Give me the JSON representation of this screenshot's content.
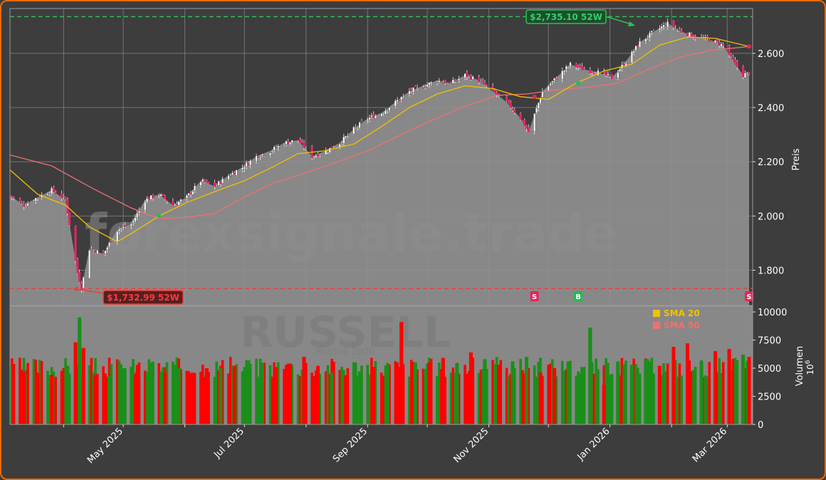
{
  "watermark": {
    "domain": "forexsignale.trade",
    "symbol": "RUSSELL",
    "subtitle": "Russell 2000"
  },
  "legend": {
    "sma20": "SMA 20",
    "sma50": "SMA 50"
  },
  "annotations": {
    "high": {
      "label": "$2,735.10 52W",
      "value": 2735.1
    },
    "low": {
      "label": "$1,732.99 52W",
      "value": 1732.99
    }
  },
  "price_axis": {
    "label": "Preis",
    "ticks": [
      "1.800",
      "2.000",
      "2.200",
      "2.400",
      "2.600"
    ]
  },
  "volume_axis": {
    "label": "Volumen",
    "unit_base": "10",
    "unit_exp": "6",
    "ticks": [
      "0",
      "2500",
      "5000",
      "7500",
      "10000"
    ]
  },
  "x_axis": {
    "ticks": [
      "May 2025",
      "Jul 2025",
      "Sep 2025",
      "Nov 2025",
      "Jan 2026",
      "Mar 2026"
    ]
  },
  "colors": {
    "background": "#3d3d3d",
    "plot_area": "#888888",
    "up": "#1a8f1a",
    "down": "#ff0000",
    "sma20": "#f2c200",
    "sma50": "#f07070",
    "high_line": "#2fbf5a",
    "low_line": "#e84040",
    "signal_buy": "#22bb55",
    "signal_sell": "#e8245a",
    "frame": "#f06a00"
  },
  "chart_data": [
    {
      "type": "candlestick",
      "title": "",
      "xlabel": "",
      "ylabel": "Preis",
      "x_range": [
        "2025-03-05",
        "2026-03-12"
      ],
      "ylim": [
        1670,
        2765
      ],
      "grid": true,
      "close_series": [
        [
          "2025-03-05",
          2075
        ],
        [
          "2025-03-12",
          2040
        ],
        [
          "2025-03-19",
          2070
        ],
        [
          "2025-03-26",
          2095
        ],
        [
          "2025-04-02",
          2060
        ],
        [
          "2025-04-04",
          1970
        ],
        [
          "2025-04-08",
          1790
        ],
        [
          "2025-04-10",
          1735
        ],
        [
          "2025-04-14",
          1880
        ],
        [
          "2025-04-21",
          1860
        ],
        [
          "2025-04-28",
          1950
        ],
        [
          "2025-05-05",
          1970
        ],
        [
          "2025-05-12",
          2060
        ],
        [
          "2025-05-19",
          2080
        ],
        [
          "2025-05-26",
          2040
        ],
        [
          "2025-06-02",
          2070
        ],
        [
          "2025-06-09",
          2130
        ],
        [
          "2025-06-16",
          2110
        ],
        [
          "2025-06-23",
          2150
        ],
        [
          "2025-06-30",
          2180
        ],
        [
          "2025-07-07",
          2220
        ],
        [
          "2025-07-14",
          2240
        ],
        [
          "2025-07-21",
          2270
        ],
        [
          "2025-07-28",
          2280
        ],
        [
          "2025-08-04",
          2220
        ],
        [
          "2025-08-11",
          2240
        ],
        [
          "2025-08-18",
          2270
        ],
        [
          "2025-08-25",
          2320
        ],
        [
          "2025-09-01",
          2360
        ],
        [
          "2025-09-08",
          2380
        ],
        [
          "2025-09-15",
          2420
        ],
        [
          "2025-09-22",
          2460
        ],
        [
          "2025-09-29",
          2480
        ],
        [
          "2025-10-06",
          2500
        ],
        [
          "2025-10-13",
          2490
        ],
        [
          "2025-10-20",
          2520
        ],
        [
          "2025-10-27",
          2500
        ],
        [
          "2025-11-03",
          2460
        ],
        [
          "2025-11-10",
          2420
        ],
        [
          "2025-11-17",
          2360
        ],
        [
          "2025-11-21",
          2310
        ],
        [
          "2025-11-28",
          2460
        ],
        [
          "2025-12-05",
          2510
        ],
        [
          "2025-12-12",
          2560
        ],
        [
          "2025-12-19",
          2540
        ],
        [
          "2025-12-26",
          2530
        ],
        [
          "2026-01-02",
          2510
        ],
        [
          "2026-01-09",
          2570
        ],
        [
          "2026-01-16",
          2640
        ],
        [
          "2026-01-23",
          2680
        ],
        [
          "2026-01-30",
          2710
        ],
        [
          "2026-02-06",
          2680
        ],
        [
          "2026-02-13",
          2660
        ],
        [
          "2026-02-20",
          2650
        ],
        [
          "2026-02-27",
          2630
        ],
        [
          "2026-03-04",
          2570
        ],
        [
          "2026-03-09",
          2520
        ],
        [
          "2026-03-12",
          2530
        ]
      ],
      "series": [
        {
          "name": "SMA 20",
          "values": [
            [
              "2025-03-05",
              2170
            ],
            [
              "2025-03-19",
              2080
            ],
            [
              "2025-04-02",
              2040
            ],
            [
              "2025-04-14",
              1960
            ],
            [
              "2025-04-28",
              1905
            ],
            [
              "2025-05-05",
              1935
            ],
            [
              "2025-05-19",
              2000
            ],
            [
              "2025-06-02",
              2050
            ],
            [
              "2025-06-16",
              2090
            ],
            [
              "2025-07-01",
              2130
            ],
            [
              "2025-07-15",
              2180
            ],
            [
              "2025-07-28",
              2230
            ],
            [
              "2025-08-10",
              2240
            ],
            [
              "2025-08-25",
              2265
            ],
            [
              "2025-09-08",
              2330
            ],
            [
              "2025-09-22",
              2400
            ],
            [
              "2025-10-06",
              2450
            ],
            [
              "2025-10-20",
              2480
            ],
            [
              "2025-11-03",
              2470
            ],
            [
              "2025-11-17",
              2440
            ],
            [
              "2025-12-01",
              2430
            ],
            [
              "2025-12-15",
              2490
            ],
            [
              "2025-12-29",
              2535
            ],
            [
              "2026-01-12",
              2560
            ],
            [
              "2026-01-26",
              2630
            ],
            [
              "2026-02-09",
              2660
            ],
            [
              "2026-02-23",
              2655
            ],
            [
              "2026-03-12",
              2625
            ]
          ]
        },
        {
          "name": "SMA 50",
          "values": [
            [
              "2025-03-05",
              2225
            ],
            [
              "2025-03-26",
              2185
            ],
            [
              "2025-04-16",
              2100
            ],
            [
              "2025-05-05",
              2030
            ],
            [
              "2025-05-19",
              1990
            ],
            [
              "2025-06-02",
              1995
            ],
            [
              "2025-06-16",
              2010
            ],
            [
              "2025-07-01",
              2070
            ],
            [
              "2025-07-15",
              2120
            ],
            [
              "2025-08-01",
              2160
            ],
            [
              "2025-08-15",
              2195
            ],
            [
              "2025-09-01",
              2240
            ],
            [
              "2025-09-15",
              2290
            ],
            [
              "2025-10-01",
              2345
            ],
            [
              "2025-10-20",
              2405
            ],
            [
              "2025-11-05",
              2445
            ],
            [
              "2025-11-20",
              2450
            ],
            [
              "2025-12-05",
              2465
            ],
            [
              "2025-12-20",
              2475
            ],
            [
              "2026-01-05",
              2490
            ],
            [
              "2026-01-20",
              2540
            ],
            [
              "2026-02-05",
              2585
            ],
            [
              "2026-02-20",
              2610
            ],
            [
              "2026-03-12",
              2625
            ]
          ]
        }
      ],
      "signals": [
        {
          "date": "2025-05-19",
          "type": "B"
        },
        {
          "date": "2025-11-24",
          "type": "S"
        },
        {
          "date": "2025-12-16",
          "type": "B"
        },
        {
          "date": "2026-03-12",
          "type": "S"
        }
      ],
      "hlines": [
        {
          "label": "$2,735.10 52W",
          "y": 2735.1
        },
        {
          "label": "$1,732.99 52W",
          "y": 1732.99
        }
      ]
    },
    {
      "type": "bar",
      "title": "",
      "ylabel": "Volumen",
      "ylim": [
        0,
        10000
      ],
      "x_range": [
        "2025-03-05",
        "2026-03-12"
      ],
      "values": [
        [
          "2025-03-05",
          5200,
          "up"
        ],
        [
          "2025-03-12",
          4700,
          "down"
        ],
        [
          "2025-03-19",
          4500,
          "down"
        ],
        [
          "2025-03-26",
          4400,
          "down"
        ],
        [
          "2025-04-03",
          5200,
          "up"
        ],
        [
          "2025-04-07",
          7300,
          "down"
        ],
        [
          "2025-04-09",
          9500,
          "up"
        ],
        [
          "2025-04-11",
          6800,
          "down"
        ],
        [
          "2025-04-17",
          4400,
          "down"
        ],
        [
          "2025-04-24",
          4300,
          "up"
        ],
        [
          "2025-05-01",
          5000,
          "up"
        ],
        [
          "2025-05-08",
          4700,
          "down"
        ],
        [
          "2025-05-15",
          5500,
          "up"
        ],
        [
          "2025-05-22",
          4600,
          "down"
        ],
        [
          "2025-05-29",
          5000,
          "up"
        ],
        [
          "2025-06-05",
          4600,
          "down"
        ],
        [
          "2025-06-12",
          5000,
          "down"
        ],
        [
          "2025-06-19",
          5000,
          "up"
        ],
        [
          "2025-06-26",
          5200,
          "down"
        ],
        [
          "2025-07-03",
          5700,
          "up"
        ],
        [
          "2025-07-10",
          5500,
          "up"
        ],
        [
          "2025-07-17",
          5100,
          "down"
        ],
        [
          "2025-07-24",
          5400,
          "down"
        ],
        [
          "2025-07-31",
          6000,
          "down"
        ],
        [
          "2025-08-07",
          5200,
          "down"
        ],
        [
          "2025-08-14",
          4600,
          "up"
        ],
        [
          "2025-08-21",
          4300,
          "down"
        ],
        [
          "2025-08-28",
          4700,
          "up"
        ],
        [
          "2025-09-04",
          5100,
          "down"
        ],
        [
          "2025-09-11",
          5200,
          "up"
        ],
        [
          "2025-09-18",
          9100,
          "down"
        ],
        [
          "2025-09-25",
          5500,
          "up"
        ],
        [
          "2025-10-02",
          5500,
          "down"
        ],
        [
          "2025-10-09",
          5900,
          "down"
        ],
        [
          "2025-10-16",
          5400,
          "up"
        ],
        [
          "2025-10-23",
          6400,
          "down"
        ],
        [
          "2025-10-30",
          5800,
          "up"
        ],
        [
          "2025-11-06",
          5300,
          "down"
        ],
        [
          "2025-11-13",
          5600,
          "up"
        ],
        [
          "2025-11-20",
          6000,
          "up"
        ],
        [
          "2025-11-27",
          4600,
          "down"
        ],
        [
          "2025-12-04",
          5000,
          "down"
        ],
        [
          "2025-12-11",
          5600,
          "up"
        ],
        [
          "2025-12-18",
          5100,
          "up"
        ],
        [
          "2025-12-22",
          8600,
          "up"
        ],
        [
          "2025-12-29",
          3500,
          "down"
        ],
        [
          "2026-01-05",
          5600,
          "up"
        ],
        [
          "2026-01-12",
          5300,
          "up"
        ],
        [
          "2026-01-19",
          5800,
          "up"
        ],
        [
          "2026-01-26",
          5200,
          "down"
        ],
        [
          "2026-02-02",
          6900,
          "down"
        ],
        [
          "2026-02-09",
          7200,
          "down"
        ],
        [
          "2026-02-16",
          5600,
          "up"
        ],
        [
          "2026-02-23",
          6500,
          "down"
        ],
        [
          "2026-03-02",
          6700,
          "down"
        ],
        [
          "2026-03-09",
          6200,
          "up"
        ],
        [
          "2026-03-12",
          6000,
          "down"
        ]
      ]
    }
  ]
}
